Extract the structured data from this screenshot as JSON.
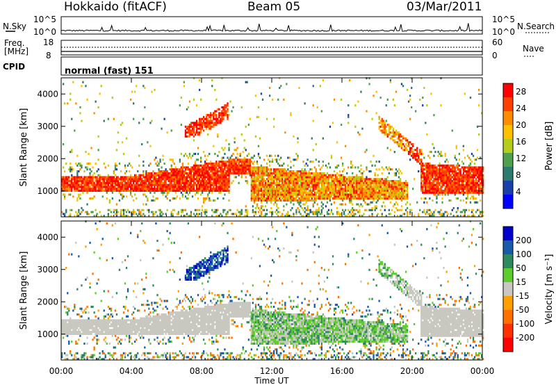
{
  "header": {
    "station": "Hokkaido (fitACF)",
    "beam": "Beam 05",
    "date": "03/Mar/2011"
  },
  "panels": {
    "nsky": {
      "left_label": "N.Sky",
      "left_ticks": [
        "10^5",
        "10^0"
      ],
      "right_label": "N.Search",
      "right_ticks": [
        "10^5",
        "10^0"
      ]
    },
    "freq": {
      "left_label_line1": "Freq.",
      "left_label_line2": "[MHz]",
      "left_ticks": [
        "18",
        "8"
      ],
      "right_label": "Nave",
      "right_ticks": [
        "60",
        "0"
      ]
    },
    "cpid": {
      "label": "CPID",
      "value": "normal (fast) 151"
    }
  },
  "chart_data": [
    {
      "type": "heatmap",
      "quantity": "Power",
      "ylabel": "Slant Range [km]",
      "xlabel": "Time UT",
      "ylim": [
        200,
        4500
      ],
      "xlim": [
        0,
        24
      ],
      "x_ticks": [
        "00:00",
        "04:00",
        "08:00",
        "12:00",
        "16:00",
        "20:00",
        "00:00"
      ],
      "y_ticks": [
        1000,
        2000,
        3000,
        4000
      ],
      "colorbar": {
        "label": "Power [dB]",
        "ticks": [
          4,
          8,
          12,
          16,
          20,
          24,
          28
        ],
        "range": [
          0,
          30
        ],
        "colors": [
          "#0000ff",
          "#1a3fa8",
          "#2e7a6e",
          "#4ea04e",
          "#b5cc1a",
          "#ffc000",
          "#ff8c00",
          "#ff4000",
          "#ff0000"
        ]
      }
    },
    {
      "type": "heatmap",
      "quantity": "Velocity",
      "ylabel": "Slant Range [km]",
      "xlabel": "Time UT",
      "ylim": [
        200,
        4500
      ],
      "xlim": [
        0,
        24
      ],
      "x_ticks": [
        "00:00",
        "04:00",
        "08:00",
        "12:00",
        "16:00",
        "20:00",
        "00:00"
      ],
      "y_ticks": [
        1000,
        2000,
        3000,
        4000
      ],
      "colorbar": {
        "label": "Velocity [m s⁻¹]",
        "ticks": [
          200,
          100,
          50,
          15,
          -15,
          -50,
          -100,
          -200
        ],
        "colors": [
          "#0000cc",
          "#1a5aaa",
          "#2e8a5e",
          "#5fcc2e",
          "#c8c8c0",
          "#ffa000",
          "#ff7000",
          "#ff3000",
          "#ff0000"
        ]
      }
    }
  ]
}
